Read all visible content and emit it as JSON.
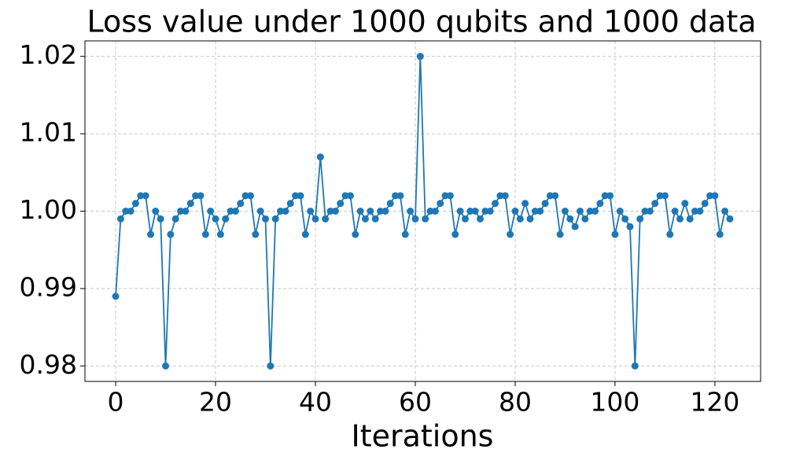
{
  "chart_data": {
    "type": "line",
    "title": "Loss value under 1000 qubits and 1000 data",
    "x_label": "Iterations",
    "x": [
      0,
      1,
      2,
      3,
      4,
      5,
      6,
      7,
      8,
      9,
      10,
      11,
      12,
      13,
      14,
      15,
      16,
      17,
      18,
      19,
      20,
      21,
      22,
      23,
      24,
      25,
      26,
      27,
      28,
      29,
      30,
      31,
      32,
      33,
      34,
      35,
      36,
      37,
      38,
      39,
      40,
      41,
      42,
      43,
      44,
      45,
      46,
      47,
      48,
      49,
      50,
      51,
      52,
      53,
      54,
      55,
      56,
      57,
      58,
      59,
      60,
      61,
      62,
      63,
      64,
      65,
      66,
      67,
      68,
      69,
      70,
      71,
      72,
      73,
      74,
      75,
      76,
      77,
      78,
      79,
      80,
      81,
      82,
      83,
      84,
      85,
      86,
      87,
      88,
      89,
      90,
      91,
      92,
      93,
      94,
      95,
      96,
      97,
      98,
      99,
      100,
      101,
      102,
      103,
      104,
      105,
      106,
      107,
      108,
      109,
      110,
      111,
      112,
      113,
      114,
      115,
      116,
      117,
      118,
      119,
      120,
      121,
      122,
      123
    ],
    "values": [
      0.989,
      0.999,
      1.0,
      1.0,
      1.001,
      1.002,
      1.002,
      0.997,
      1.0,
      0.999,
      0.98,
      0.997,
      0.999,
      1.0,
      1.0,
      1.001,
      1.002,
      1.002,
      0.997,
      1.0,
      0.999,
      0.997,
      0.999,
      1.0,
      1.0,
      1.001,
      1.002,
      1.002,
      0.997,
      1.0,
      0.999,
      0.98,
      0.999,
      1.0,
      1.0,
      1.001,
      1.002,
      1.002,
      0.997,
      1.0,
      0.999,
      1.007,
      0.999,
      1.0,
      1.0,
      1.001,
      1.002,
      1.002,
      0.997,
      1.0,
      0.999,
      1.0,
      0.999,
      1.0,
      1.0,
      1.001,
      1.002,
      1.002,
      0.997,
      1.0,
      0.999,
      1.02,
      0.999,
      1.0,
      1.0,
      1.001,
      1.002,
      1.002,
      0.997,
      1.0,
      0.999,
      1.0,
      1.0,
      0.999,
      1.0,
      1.0,
      1.001,
      1.002,
      1.002,
      0.997,
      1.0,
      0.999,
      1.001,
      0.999,
      1.0,
      1.0,
      1.001,
      1.002,
      1.002,
      0.997,
      1.0,
      0.999,
      0.998,
      1.0,
      0.999,
      1.0,
      1.0,
      1.001,
      1.002,
      1.002,
      0.997,
      1.0,
      0.999,
      0.998,
      0.98,
      0.999,
      1.0,
      1.0,
      1.001,
      1.002,
      1.002,
      0.997,
      1.0,
      0.999,
      1.001,
      0.999,
      1.0,
      1.0,
      1.001,
      1.002,
      1.002,
      0.997,
      1.0,
      0.999
    ],
    "color": "#1f77b4",
    "xlim": [
      -6.15,
      129.15
    ],
    "ylim": [
      0.978,
      1.022
    ],
    "xticks": [
      0,
      20,
      40,
      60,
      80,
      100,
      120
    ],
    "yticks": [
      0.98,
      0.99,
      {
        "value": 1.0,
        "label": "1.00"
      },
      1.01,
      1.02
    ],
    "grid": true
  }
}
